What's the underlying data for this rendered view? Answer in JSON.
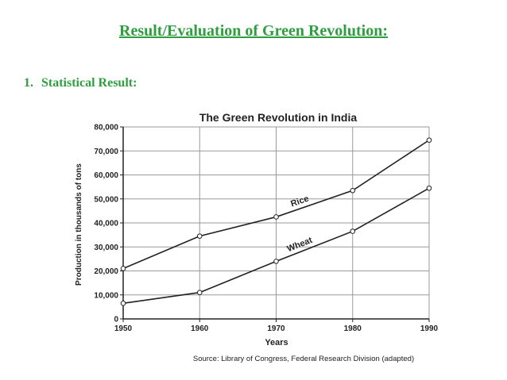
{
  "slide": {
    "title": "Result/Evaluation of Green Revolution:",
    "section_number": "1.",
    "section_heading": "Statistical Result:"
  },
  "colors": {
    "heading_green": "#2e9e3e",
    "chart_ink": "#222222",
    "grid": "#9a9a9a"
  },
  "chart_data": {
    "type": "line",
    "title": "The Green Revolution in India",
    "xlabel": "Years",
    "ylabel": "Production in thousands of tons",
    "source": "Source: Library of Congress, Federal Research Division (adapted)",
    "x": [
      1950,
      1960,
      1970,
      1980,
      1990
    ],
    "x_tick_labels": [
      "1950",
      "1960",
      "1970",
      "1980",
      "1990"
    ],
    "y_ticks": [
      0,
      10000,
      20000,
      30000,
      40000,
      50000,
      60000,
      70000,
      80000
    ],
    "y_tick_labels": [
      "0",
      "10,000",
      "20,000",
      "30,000",
      "40,000",
      "50,000",
      "60,000",
      "70,000",
      "80,000"
    ],
    "xlim": [
      1950,
      1990
    ],
    "ylim": [
      0,
      80000
    ],
    "grid": true,
    "series": [
      {
        "name": "Rice",
        "values": [
          21000,
          34500,
          42500,
          53500,
          74500
        ]
      },
      {
        "name": "Wheat",
        "values": [
          6500,
          11000,
          24000,
          36500,
          54500
        ]
      }
    ]
  }
}
